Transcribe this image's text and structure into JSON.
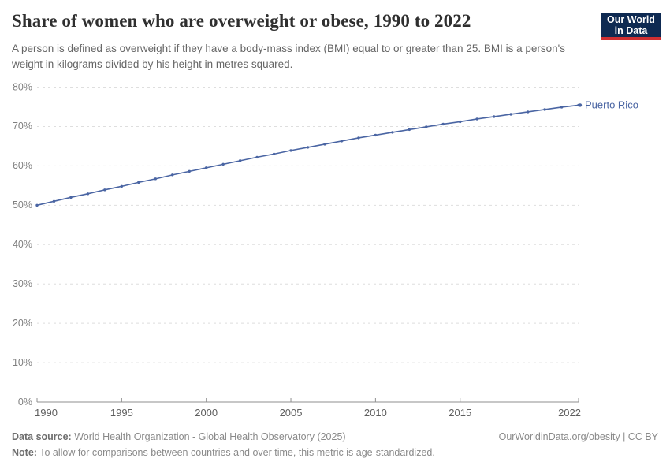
{
  "header": {
    "logo": {
      "line1": "Our World",
      "line2": "in Data",
      "bg_color": "#0e2a52",
      "accent_color": "#cf2f32"
    }
  },
  "chart_data": {
    "type": "line",
    "title": "Share of women who are overweight or obese, 1990 to 2022",
    "subtitle": "A person is defined as overweight if they have a body-mass index (BMI) equal to or greater than 25. BMI is a person's weight in kilograms divided by his height in metres squared.",
    "x": [
      1990,
      1991,
      1992,
      1993,
      1994,
      1995,
      1996,
      1997,
      1998,
      1999,
      2000,
      2001,
      2002,
      2003,
      2004,
      2005,
      2006,
      2007,
      2008,
      2009,
      2010,
      2011,
      2012,
      2013,
      2014,
      2015,
      2016,
      2017,
      2018,
      2019,
      2020,
      2021,
      2022
    ],
    "series": [
      {
        "name": "Puerto Rico",
        "color": "#4a65a3",
        "values": [
          50.0,
          51.0,
          52.0,
          52.9,
          53.9,
          54.8,
          55.8,
          56.7,
          57.7,
          58.6,
          59.5,
          60.4,
          61.3,
          62.2,
          63.0,
          63.9,
          64.7,
          65.5,
          66.3,
          67.1,
          67.8,
          68.5,
          69.2,
          69.9,
          70.6,
          71.2,
          71.9,
          72.5,
          73.1,
          73.7,
          74.3,
          74.9,
          75.4
        ]
      }
    ],
    "end_label": "Puerto Rico",
    "xticks": [
      1990,
      1995,
      2000,
      2005,
      2010,
      2015,
      2022
    ],
    "yticks": [
      0,
      10,
      20,
      30,
      40,
      50,
      60,
      70,
      80
    ],
    "xlim": [
      1990,
      2022
    ],
    "ylim": [
      0,
      80
    ],
    "y_unit": "%",
    "grid": "horizontal-dashed",
    "legend_position": "end-of-line"
  },
  "footer": {
    "datasource_label": "Data source:",
    "datasource_text": " World Health Organization - Global Health Observatory (2025)",
    "link": "OurWorldinData.org/obesity | CC BY",
    "note_label": "Note:",
    "note_text": " To allow for comparisons between countries and over time, this metric is age-standardized."
  }
}
